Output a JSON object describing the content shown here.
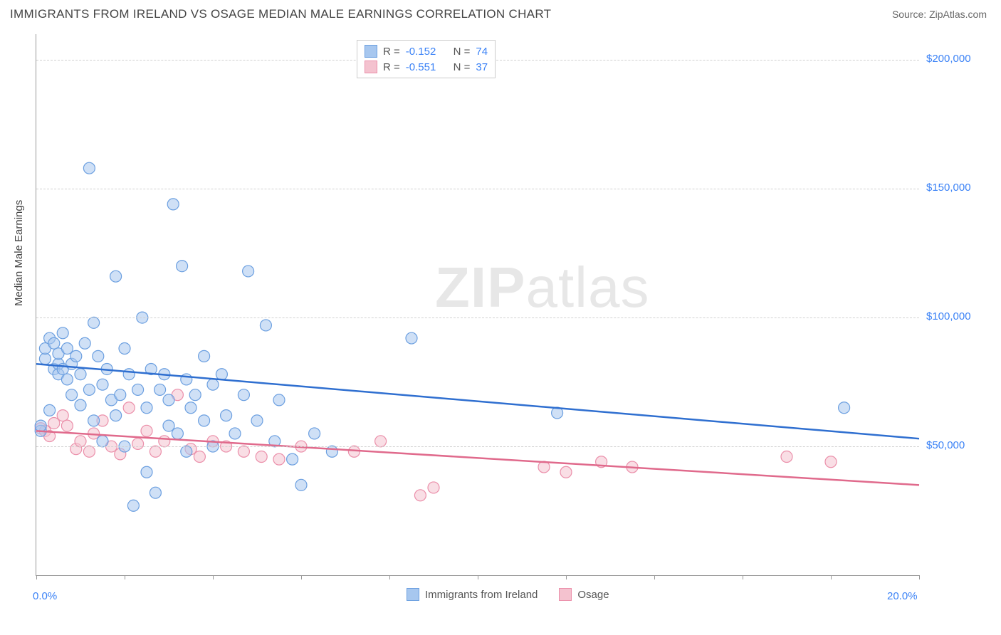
{
  "header": {
    "title": "IMMIGRANTS FROM IRELAND VS OSAGE MEDIAN MALE EARNINGS CORRELATION CHART",
    "source": "Source: ZipAtlas.com"
  },
  "watermark": {
    "part1": "ZIP",
    "part2": "atlas"
  },
  "chart": {
    "type": "scatter",
    "ylabel": "Median Male Earnings",
    "xlim": [
      0,
      20
    ],
    "ylim": [
      0,
      210000
    ],
    "x_tick_positions": [
      0,
      2,
      4,
      6,
      8,
      10,
      12,
      14,
      16,
      18,
      20
    ],
    "x_tick_labels": {
      "0": "0.0%",
      "20": "20.0%"
    },
    "y_gridlines": [
      50000,
      100000,
      150000,
      200000
    ],
    "y_tick_labels": {
      "50000": "$50,000",
      "100000": "$100,000",
      "150000": "$150,000",
      "200000": "$200,000"
    },
    "background_color": "#ffffff",
    "grid_color": "#d0d0d0",
    "axis_color": "#999999",
    "label_color": "#3b82f6",
    "marker_radius": 8,
    "marker_opacity": 0.55,
    "line_width": 2.5,
    "series": [
      {
        "name": "Immigrants from Ireland",
        "color_fill": "#a7c7ef",
        "color_stroke": "#6b9fe0",
        "line_color": "#2f6fd0",
        "R": "-0.152",
        "N": "74",
        "trend": {
          "x1": 0,
          "y1": 82000,
          "x2": 20,
          "y2": 53000
        },
        "points": [
          [
            0.1,
            56000
          ],
          [
            0.1,
            58000
          ],
          [
            0.2,
            84000
          ],
          [
            0.2,
            88000
          ],
          [
            0.3,
            92000
          ],
          [
            0.3,
            64000
          ],
          [
            0.4,
            80000
          ],
          [
            0.4,
            90000
          ],
          [
            0.5,
            82000
          ],
          [
            0.5,
            86000
          ],
          [
            0.5,
            78000
          ],
          [
            0.6,
            80000
          ],
          [
            0.6,
            94000
          ],
          [
            0.7,
            76000
          ],
          [
            0.7,
            88000
          ],
          [
            0.8,
            70000
          ],
          [
            0.8,
            82000
          ],
          [
            0.9,
            85000
          ],
          [
            1.0,
            78000
          ],
          [
            1.0,
            66000
          ],
          [
            1.1,
            90000
          ],
          [
            1.2,
            158000
          ],
          [
            1.2,
            72000
          ],
          [
            1.3,
            98000
          ],
          [
            1.3,
            60000
          ],
          [
            1.4,
            85000
          ],
          [
            1.5,
            74000
          ],
          [
            1.5,
            52000
          ],
          [
            1.6,
            80000
          ],
          [
            1.7,
            68000
          ],
          [
            1.8,
            116000
          ],
          [
            1.8,
            62000
          ],
          [
            1.9,
            70000
          ],
          [
            2.0,
            88000
          ],
          [
            2.0,
            50000
          ],
          [
            2.1,
            78000
          ],
          [
            2.2,
            27000
          ],
          [
            2.3,
            72000
          ],
          [
            2.4,
            100000
          ],
          [
            2.5,
            65000
          ],
          [
            2.5,
            40000
          ],
          [
            2.6,
            80000
          ],
          [
            2.7,
            32000
          ],
          [
            2.8,
            72000
          ],
          [
            2.9,
            78000
          ],
          [
            3.0,
            58000
          ],
          [
            3.0,
            68000
          ],
          [
            3.1,
            144000
          ],
          [
            3.2,
            55000
          ],
          [
            3.3,
            120000
          ],
          [
            3.4,
            76000
          ],
          [
            3.4,
            48000
          ],
          [
            3.5,
            65000
          ],
          [
            3.6,
            70000
          ],
          [
            3.8,
            85000
          ],
          [
            3.8,
            60000
          ],
          [
            4.0,
            50000
          ],
          [
            4.0,
            74000
          ],
          [
            4.2,
            78000
          ],
          [
            4.3,
            62000
          ],
          [
            4.5,
            55000
          ],
          [
            4.7,
            70000
          ],
          [
            4.8,
            118000
          ],
          [
            5.0,
            60000
          ],
          [
            5.2,
            97000
          ],
          [
            5.4,
            52000
          ],
          [
            5.5,
            68000
          ],
          [
            5.8,
            45000
          ],
          [
            6.0,
            35000
          ],
          [
            6.3,
            55000
          ],
          [
            6.7,
            48000
          ],
          [
            8.5,
            92000
          ],
          [
            11.8,
            63000
          ],
          [
            18.3,
            65000
          ]
        ]
      },
      {
        "name": "Osage",
        "color_fill": "#f4c2cf",
        "color_stroke": "#eb8faa",
        "line_color": "#e06a8c",
        "R": "-0.551",
        "N": "37",
        "trend": {
          "x1": 0,
          "y1": 56000,
          "x2": 20,
          "y2": 35000
        },
        "points": [
          [
            0.1,
            57000
          ],
          [
            0.2,
            56000
          ],
          [
            0.3,
            54000
          ],
          [
            0.4,
            59000
          ],
          [
            0.6,
            62000
          ],
          [
            0.7,
            58000
          ],
          [
            0.9,
            49000
          ],
          [
            1.0,
            52000
          ],
          [
            1.2,
            48000
          ],
          [
            1.3,
            55000
          ],
          [
            1.5,
            60000
          ],
          [
            1.7,
            50000
          ],
          [
            1.9,
            47000
          ],
          [
            2.1,
            65000
          ],
          [
            2.3,
            51000
          ],
          [
            2.5,
            56000
          ],
          [
            2.7,
            48000
          ],
          [
            2.9,
            52000
          ],
          [
            3.2,
            70000
          ],
          [
            3.5,
            49000
          ],
          [
            3.7,
            46000
          ],
          [
            4.0,
            52000
          ],
          [
            4.3,
            50000
          ],
          [
            4.7,
            48000
          ],
          [
            5.1,
            46000
          ],
          [
            5.5,
            45000
          ],
          [
            6.0,
            50000
          ],
          [
            7.2,
            48000
          ],
          [
            7.8,
            52000
          ],
          [
            8.7,
            31000
          ],
          [
            9.0,
            34000
          ],
          [
            11.5,
            42000
          ],
          [
            12.0,
            40000
          ],
          [
            12.8,
            44000
          ],
          [
            13.5,
            42000
          ],
          [
            17.0,
            46000
          ],
          [
            18.0,
            44000
          ]
        ]
      }
    ]
  },
  "legend": {
    "series1_label": "Immigrants from Ireland",
    "series2_label": "Osage"
  },
  "stats_labels": {
    "R": "R =",
    "N": "N ="
  }
}
